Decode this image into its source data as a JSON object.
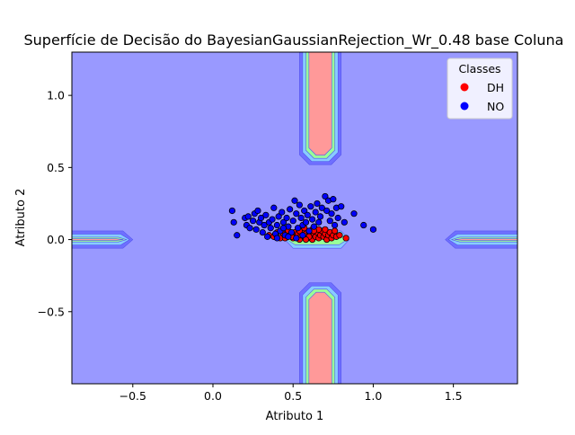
{
  "chart_data": {
    "type": "scatter",
    "title": "Superfície de Decisão do BayesianGaussianRejection_Wr_0.48 base Coluna",
    "xlabel": "Atributo 1",
    "ylabel": "Atributo 2",
    "xlim": [
      -0.88,
      1.9
    ],
    "ylim": [
      -1.0,
      1.3
    ],
    "xticks": [
      -0.5,
      0.0,
      0.5,
      1.0,
      1.5
    ],
    "xtick_labels": [
      "−0.5",
      "0.0",
      "0.5",
      "1.0",
      "1.5"
    ],
    "yticks": [
      -0.5,
      0.0,
      0.5,
      1.0
    ],
    "ytick_labels": [
      "−0.5",
      "0.0",
      "0.5",
      "1.0"
    ],
    "grid": false,
    "legend": {
      "title": "Classes",
      "placement": "top-right",
      "entries": [
        {
          "label": "DH",
          "color": "#ff0000"
        },
        {
          "label": "NO",
          "color": "#0000ff"
        }
      ]
    },
    "background_color": "#9999ff",
    "decision_regions": [
      {
        "arm": "top",
        "x": [
          0.54,
          0.8
        ],
        "y": [
          0.52,
          1.3
        ]
      },
      {
        "arm": "bottom",
        "x": [
          0.54,
          0.8
        ],
        "y": [
          -1.0,
          -0.3
        ]
      },
      {
        "arm": "left",
        "x": [
          -0.88,
          -0.5
        ],
        "y": [
          -0.06,
          0.06
        ]
      },
      {
        "arm": "right",
        "x": [
          1.45,
          1.9
        ],
        "y": [
          -0.06,
          0.06
        ]
      }
    ],
    "contour_colors": [
      "#9999ff",
      "#6f6fff",
      "#88ccff",
      "#99ff99",
      "#ff9999"
    ],
    "series": [
      {
        "name": "DH",
        "color": "#ff0000",
        "points": [
          [
            0.35,
            0.03
          ],
          [
            0.38,
            0.02
          ],
          [
            0.4,
            0.05
          ],
          [
            0.42,
            0.01
          ],
          [
            0.44,
            0.04
          ],
          [
            0.46,
            0.02
          ],
          [
            0.47,
            0.06
          ],
          [
            0.48,
            0.03
          ],
          [
            0.5,
            0.01
          ],
          [
            0.51,
            0.05
          ],
          [
            0.52,
            0.02
          ],
          [
            0.53,
            0.04
          ],
          [
            0.54,
            0.0
          ],
          [
            0.55,
            0.03
          ],
          [
            0.56,
            0.06
          ],
          [
            0.57,
            0.02
          ],
          [
            0.58,
            0.04
          ],
          [
            0.59,
            0.01
          ],
          [
            0.6,
            0.05
          ],
          [
            0.61,
            0.03
          ],
          [
            0.62,
            0.0
          ],
          [
            0.63,
            0.04
          ],
          [
            0.64,
            0.02
          ],
          [
            0.65,
            0.05
          ],
          [
            0.66,
            0.01
          ],
          [
            0.67,
            0.03
          ],
          [
            0.68,
            0.06
          ],
          [
            0.69,
            0.02
          ],
          [
            0.7,
            0.04
          ],
          [
            0.71,
            0.0
          ],
          [
            0.72,
            0.03
          ],
          [
            0.73,
            0.05
          ],
          [
            0.74,
            0.01
          ],
          [
            0.75,
            0.03
          ],
          [
            0.76,
            0.06
          ],
          [
            0.77,
            0.02
          ],
          [
            0.79,
            0.03
          ],
          [
            0.83,
            0.01
          ],
          [
            0.62,
            0.07
          ],
          [
            0.57,
            0.08
          ],
          [
            0.66,
            0.07
          ],
          [
            0.54,
            0.06
          ],
          [
            0.49,
            0.02
          ],
          [
            0.45,
            0.01
          ],
          [
            0.6,
            0.02
          ],
          [
            0.7,
            0.07
          ],
          [
            0.63,
            0.06
          ],
          [
            0.58,
            0.0
          ]
        ]
      },
      {
        "name": "NO",
        "color": "#0000ff",
        "points": [
          [
            0.12,
            0.2
          ],
          [
            0.13,
            0.12
          ],
          [
            0.15,
            0.03
          ],
          [
            0.2,
            0.15
          ],
          [
            0.21,
            0.1
          ],
          [
            0.22,
            0.16
          ],
          [
            0.23,
            0.08
          ],
          [
            0.25,
            0.13
          ],
          [
            0.26,
            0.18
          ],
          [
            0.27,
            0.07
          ],
          [
            0.28,
            0.2
          ],
          [
            0.29,
            0.12
          ],
          [
            0.3,
            0.15
          ],
          [
            0.31,
            0.05
          ],
          [
            0.32,
            0.1
          ],
          [
            0.33,
            0.17
          ],
          [
            0.34,
            0.02
          ],
          [
            0.35,
            0.12
          ],
          [
            0.36,
            0.08
          ],
          [
            0.37,
            0.14
          ],
          [
            0.38,
            0.22
          ],
          [
            0.39,
            0.04
          ],
          [
            0.4,
            0.1
          ],
          [
            0.41,
            0.16
          ],
          [
            0.42,
            0.06
          ],
          [
            0.43,
            0.19
          ],
          [
            0.44,
            0.12
          ],
          [
            0.45,
            0.03
          ],
          [
            0.46,
            0.15
          ],
          [
            0.47,
            0.09
          ],
          [
            0.48,
            0.21
          ],
          [
            0.49,
            0.05
          ],
          [
            0.5,
            0.13
          ],
          [
            0.51,
            0.27
          ],
          [
            0.52,
            0.18
          ],
          [
            0.53,
            0.08
          ],
          [
            0.54,
            0.24
          ],
          [
            0.55,
            0.15
          ],
          [
            0.56,
            0.1
          ],
          [
            0.57,
            0.2
          ],
          [
            0.58,
            0.12
          ],
          [
            0.59,
            0.17
          ],
          [
            0.6,
            0.06
          ],
          [
            0.61,
            0.23
          ],
          [
            0.62,
            0.14
          ],
          [
            0.63,
            0.09
          ],
          [
            0.64,
            0.19
          ],
          [
            0.65,
            0.25
          ],
          [
            0.66,
            0.12
          ],
          [
            0.67,
            0.16
          ],
          [
            0.68,
            0.22
          ],
          [
            0.7,
            0.3
          ],
          [
            0.71,
            0.2
          ],
          [
            0.72,
            0.27
          ],
          [
            0.73,
            0.13
          ],
          [
            0.74,
            0.18
          ],
          [
            0.75,
            0.28
          ],
          [
            0.76,
            0.1
          ],
          [
            0.77,
            0.22
          ],
          [
            0.78,
            0.15
          ],
          [
            0.8,
            0.23
          ],
          [
            0.82,
            0.12
          ],
          [
            0.88,
            0.18
          ],
          [
            0.94,
            0.1
          ],
          [
            1.0,
            0.07
          ],
          [
            0.47,
            0.02
          ],
          [
            0.52,
            0.01
          ],
          [
            0.56,
            0.03
          ],
          [
            0.44,
            0.08
          ],
          [
            0.4,
            0.01
          ]
        ]
      }
    ]
  }
}
